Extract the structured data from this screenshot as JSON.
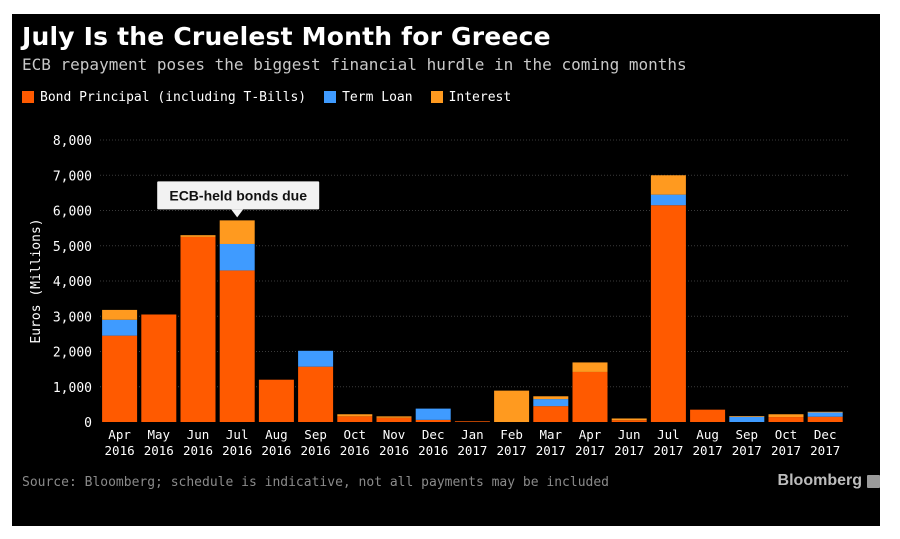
{
  "chart_data": {
    "type": "bar",
    "stacked": true,
    "title": "July Is the Cruelest Month for Greece",
    "subtitle": "ECB repayment poses the biggest financial hurdle in the coming months",
    "ylabel": "Euros (Millions)",
    "xlabel": "",
    "ylim": [
      0,
      8000
    ],
    "yticks": [
      0,
      1000,
      2000,
      3000,
      4000,
      5000,
      6000,
      7000,
      8000
    ],
    "ytick_labels": [
      "0",
      "1,000",
      "2,000",
      "3,000",
      "4,000",
      "5,000",
      "6,000",
      "7,000",
      "8,000"
    ],
    "grid": true,
    "legend_position": "top-left",
    "categories": [
      [
        "Apr",
        "2016"
      ],
      [
        "May",
        "2016"
      ],
      [
        "Jun",
        "2016"
      ],
      [
        "Jul",
        "2016"
      ],
      [
        "Aug",
        "2016"
      ],
      [
        "Sep",
        "2016"
      ],
      [
        "Oct",
        "2016"
      ],
      [
        "Nov",
        "2016"
      ],
      [
        "Dec",
        "2016"
      ],
      [
        "Jan",
        "2017"
      ],
      [
        "Feb",
        "2017"
      ],
      [
        "Mar",
        "2017"
      ],
      [
        "Apr",
        "2017"
      ],
      [
        "Jun",
        "2017"
      ],
      [
        "Jul",
        "2017"
      ],
      [
        "Aug",
        "2017"
      ],
      [
        "Sep",
        "2017"
      ],
      [
        "Oct",
        "2017"
      ],
      [
        "Dec",
        "2017"
      ]
    ],
    "series": [
      {
        "name": "Bond Principal (including T-Bills)",
        "color": "#ff5a00",
        "values": [
          2450,
          3050,
          5250,
          4300,
          1200,
          1570,
          160,
          120,
          60,
          20,
          0,
          450,
          1420,
          50,
          6150,
          350,
          0,
          140,
          150
        ]
      },
      {
        "name": "Term Loan",
        "color": "#3f9bff",
        "values": [
          450,
          0,
          0,
          750,
          0,
          450,
          0,
          0,
          320,
          0,
          0,
          200,
          0,
          0,
          300,
          0,
          150,
          0,
          120
        ]
      },
      {
        "name": "Interest",
        "color": "#ff9a1f",
        "values": [
          280,
          0,
          50,
          670,
          0,
          0,
          60,
          40,
          0,
          0,
          890,
          80,
          270,
          50,
          550,
          0,
          20,
          80,
          20
        ]
      }
    ],
    "annotations": [
      {
        "text": "ECB-held bonds due",
        "category_index": 3
      }
    ]
  },
  "footer": {
    "source": "Source: Bloomberg; schedule is indicative, not all payments may be included",
    "brand": "Bloomberg"
  },
  "colors": {
    "background": "#000000",
    "grid": "#3a3a3a",
    "text": "#ffffff",
    "muted": "#8a8a8a"
  }
}
